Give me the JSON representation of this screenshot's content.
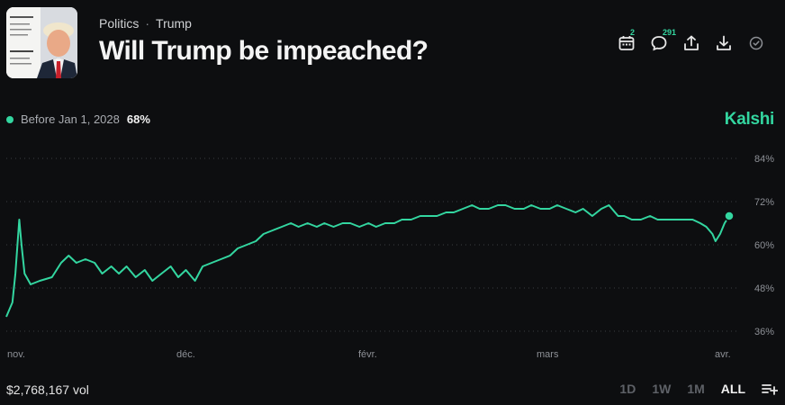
{
  "header": {
    "breadcrumb": [
      "Politics",
      "Trump"
    ],
    "title": "Will Trump be impeached?"
  },
  "actions": {
    "calendar_badge": "2",
    "comments_badge": "291"
  },
  "legend": {
    "label": "Before Jan 1, 2028",
    "value": "68%",
    "color": "#33d6a0"
  },
  "brand": "Kalshi",
  "footer": {
    "volume": "$2,768,167 vol",
    "ranges": [
      "1D",
      "1W",
      "1M",
      "ALL"
    ],
    "active_range": "ALL"
  },
  "chart_data": {
    "type": "line",
    "y_ticks": [
      "84%",
      "72%",
      "60%",
      "48%",
      "36%"
    ],
    "x_ticks": [
      "nov.",
      "déc.",
      "févr.",
      "mars",
      "avr."
    ],
    "ylim": [
      36,
      84
    ],
    "grid": true,
    "series": [
      {
        "color": "#33d6a0",
        "points": [
          [
            0,
            40
          ],
          [
            0.4,
            44
          ],
          [
            0.6,
            52
          ],
          [
            0.85,
            67
          ],
          [
            1.0,
            60
          ],
          [
            1.2,
            52
          ],
          [
            1.6,
            49
          ],
          [
            2.2,
            50
          ],
          [
            3.0,
            51
          ],
          [
            3.6,
            55
          ],
          [
            4.1,
            57
          ],
          [
            4.6,
            55
          ],
          [
            5.2,
            56
          ],
          [
            5.8,
            55
          ],
          [
            6.3,
            52
          ],
          [
            6.9,
            54
          ],
          [
            7.4,
            52
          ],
          [
            7.9,
            54
          ],
          [
            8.5,
            51
          ],
          [
            9.1,
            53
          ],
          [
            9.6,
            50
          ],
          [
            10.2,
            52
          ],
          [
            10.8,
            54
          ],
          [
            11.3,
            51
          ],
          [
            11.8,
            53
          ],
          [
            12.4,
            50
          ],
          [
            12.9,
            54
          ],
          [
            13.5,
            55
          ],
          [
            14.1,
            56
          ],
          [
            14.7,
            57
          ],
          [
            15.2,
            59
          ],
          [
            15.8,
            60
          ],
          [
            16.4,
            61
          ],
          [
            16.9,
            63
          ],
          [
            17.5,
            64
          ],
          [
            18.1,
            65
          ],
          [
            18.7,
            66
          ],
          [
            19.2,
            65
          ],
          [
            19.8,
            66
          ],
          [
            20.4,
            65
          ],
          [
            20.9,
            66
          ],
          [
            21.5,
            65
          ],
          [
            22.1,
            66
          ],
          [
            22.6,
            66
          ],
          [
            23.2,
            65
          ],
          [
            23.8,
            66
          ],
          [
            24.3,
            65
          ],
          [
            24.9,
            66
          ],
          [
            25.5,
            66
          ],
          [
            26.0,
            67
          ],
          [
            26.6,
            67
          ],
          [
            27.2,
            68
          ],
          [
            27.7,
            68
          ],
          [
            28.3,
            68
          ],
          [
            28.9,
            69
          ],
          [
            29.4,
            69
          ],
          [
            30.0,
            70
          ],
          [
            30.6,
            71
          ],
          [
            31.1,
            70
          ],
          [
            31.7,
            70
          ],
          [
            32.3,
            71
          ],
          [
            32.8,
            71
          ],
          [
            33.4,
            70
          ],
          [
            34.0,
            70
          ],
          [
            34.5,
            71
          ],
          [
            35.1,
            70
          ],
          [
            35.7,
            70
          ],
          [
            36.2,
            71
          ],
          [
            36.8,
            70
          ],
          [
            37.4,
            69
          ],
          [
            37.9,
            70
          ],
          [
            38.5,
            68
          ],
          [
            39.1,
            70
          ],
          [
            39.6,
            71
          ],
          [
            40.0,
            69
          ],
          [
            40.2,
            68
          ],
          [
            40.6,
            68
          ],
          [
            41.1,
            67
          ],
          [
            41.7,
            67
          ],
          [
            42.3,
            68
          ],
          [
            42.8,
            67
          ],
          [
            43.4,
            67
          ],
          [
            44.0,
            67
          ],
          [
            44.5,
            67
          ],
          [
            45.1,
            67
          ],
          [
            45.6,
            66
          ],
          [
            46.0,
            65
          ],
          [
            46.2,
            64
          ],
          [
            46.4,
            63
          ],
          [
            46.6,
            61
          ],
          [
            46.9,
            63
          ],
          [
            47.2,
            66
          ],
          [
            47.5,
            68
          ]
        ]
      }
    ]
  }
}
